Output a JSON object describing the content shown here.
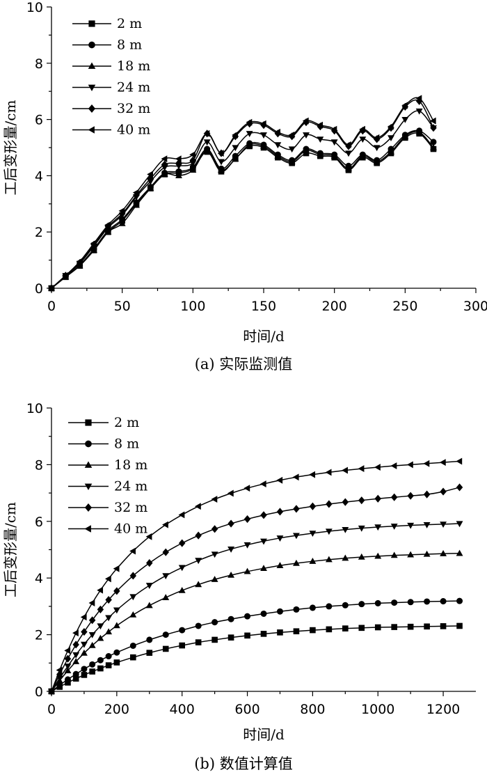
{
  "chart_data": [
    {
      "type": "line",
      "caption": "(a) 实际监测值",
      "xlabel": "时间/d",
      "ylabel": "工后变形量/cm",
      "xlim": [
        0,
        300
      ],
      "ylim": [
        0,
        10
      ],
      "xticks": [
        0,
        50,
        100,
        150,
        200,
        250,
        300
      ],
      "yticks": [
        0,
        2,
        4,
        6,
        8,
        10
      ],
      "legend_position": "top-left",
      "x": [
        0,
        10,
        20,
        30,
        40,
        50,
        60,
        70,
        80,
        90,
        100,
        110,
        120,
        130,
        140,
        150,
        160,
        170,
        180,
        190,
        200,
        210,
        220,
        230,
        240,
        250,
        260,
        270
      ],
      "series": [
        {
          "name": "2 m",
          "marker": "square",
          "values": [
            0,
            0.4,
            0.8,
            1.35,
            2.0,
            2.4,
            3.0,
            3.55,
            4.05,
            4.1,
            4.25,
            4.85,
            4.15,
            4.6,
            5.05,
            5.0,
            4.65,
            4.45,
            4.8,
            4.7,
            4.65,
            4.2,
            4.65,
            4.45,
            4.8,
            5.35,
            5.5,
            4.95
          ]
        },
        {
          "name": "8 m",
          "marker": "circle",
          "values": [
            0,
            0.42,
            0.82,
            1.4,
            2.05,
            2.45,
            3.05,
            3.6,
            4.1,
            4.15,
            4.3,
            4.95,
            4.25,
            4.7,
            5.15,
            5.1,
            4.75,
            4.55,
            4.95,
            4.8,
            4.75,
            4.35,
            4.75,
            4.55,
            4.95,
            5.45,
            5.6,
            5.2
          ]
        },
        {
          "name": "18 m",
          "marker": "triangle-up",
          "values": [
            0,
            0.4,
            0.8,
            1.35,
            2.0,
            2.3,
            2.95,
            3.55,
            4.05,
            4.0,
            4.2,
            4.9,
            4.2,
            4.6,
            5.1,
            5.05,
            4.7,
            4.5,
            4.9,
            4.75,
            4.7,
            4.25,
            4.7,
            4.5,
            4.85,
            5.4,
            5.55,
            5.0
          ]
        },
        {
          "name": "24 m",
          "marker": "triangle-down",
          "values": [
            0,
            0.45,
            0.88,
            1.5,
            2.15,
            2.6,
            3.25,
            3.8,
            4.3,
            4.35,
            4.45,
            5.2,
            4.5,
            5.0,
            5.5,
            5.45,
            5.1,
            4.95,
            5.45,
            5.3,
            5.2,
            4.8,
            5.3,
            5.0,
            5.35,
            6.0,
            6.3,
            5.7
          ]
        },
        {
          "name": "32 m",
          "marker": "diamond",
          "values": [
            0,
            0.45,
            0.9,
            1.55,
            2.2,
            2.65,
            3.3,
            3.9,
            4.4,
            4.45,
            4.55,
            5.5,
            4.8,
            5.4,
            5.85,
            5.8,
            5.5,
            5.4,
            5.9,
            5.75,
            5.6,
            5.05,
            5.6,
            5.3,
            5.7,
            6.45,
            6.65,
            5.7
          ]
        },
        {
          "name": "40 m",
          "marker": "triangle-left",
          "values": [
            0,
            0.45,
            0.95,
            1.6,
            2.25,
            2.75,
            3.4,
            4.05,
            4.6,
            4.6,
            4.75,
            5.5,
            4.8,
            5.45,
            5.9,
            5.85,
            5.55,
            5.45,
            5.95,
            5.8,
            5.65,
            5.1,
            5.65,
            5.35,
            5.75,
            6.5,
            6.75,
            5.95
          ]
        }
      ]
    },
    {
      "type": "line",
      "caption": "(b) 数值计算值",
      "xlabel": "时间/d",
      "ylabel": "工后变形量/cm",
      "xlim": [
        0,
        1300
      ],
      "ylim": [
        0,
        10
      ],
      "xticks": [
        0,
        200,
        400,
        600,
        800,
        1000,
        1200
      ],
      "yticks": [
        0,
        2,
        4,
        6,
        8,
        10
      ],
      "legend_position": "top-left",
      "x": [
        0,
        25,
        50,
        75,
        100,
        125,
        150,
        175,
        200,
        250,
        300,
        350,
        400,
        450,
        500,
        550,
        600,
        650,
        700,
        750,
        800,
        850,
        900,
        950,
        1000,
        1050,
        1100,
        1150,
        1200,
        1250
      ],
      "series": [
        {
          "name": "2 m",
          "marker": "square",
          "values": [
            0,
            0.16,
            0.31,
            0.45,
            0.58,
            0.7,
            0.81,
            0.92,
            1.02,
            1.2,
            1.36,
            1.5,
            1.62,
            1.73,
            1.82,
            1.9,
            1.97,
            2.03,
            2.08,
            2.12,
            2.16,
            2.19,
            2.22,
            2.24,
            2.26,
            2.27,
            2.28,
            2.29,
            2.3,
            2.31
          ]
        },
        {
          "name": "8 m",
          "marker": "circle",
          "values": [
            0,
            0.22,
            0.42,
            0.61,
            0.79,
            0.95,
            1.1,
            1.24,
            1.37,
            1.61,
            1.82,
            2.0,
            2.16,
            2.31,
            2.44,
            2.55,
            2.65,
            2.74,
            2.82,
            2.89,
            2.95,
            3.0,
            3.04,
            3.08,
            3.11,
            3.13,
            3.15,
            3.17,
            3.18,
            3.19
          ]
        },
        {
          "name": "18 m",
          "marker": "triangle-up",
          "values": [
            0,
            0.38,
            0.73,
            1.05,
            1.35,
            1.62,
            1.87,
            2.1,
            2.32,
            2.7,
            3.03,
            3.31,
            3.56,
            3.77,
            3.95,
            4.1,
            4.23,
            4.34,
            4.44,
            4.52,
            4.59,
            4.65,
            4.7,
            4.74,
            4.77,
            4.8,
            4.82,
            4.84,
            4.86,
            4.87
          ]
        },
        {
          "name": "24 m",
          "marker": "triangle-down",
          "values": [
            0,
            0.46,
            0.89,
            1.29,
            1.66,
            2.0,
            2.31,
            2.6,
            2.87,
            3.34,
            3.74,
            4.08,
            4.37,
            4.62,
            4.84,
            5.02,
            5.17,
            5.3,
            5.41,
            5.5,
            5.58,
            5.65,
            5.71,
            5.76,
            5.8,
            5.83,
            5.86,
            5.88,
            5.9,
            5.92
          ]
        },
        {
          "name": "32 m",
          "marker": "diamond",
          "values": [
            0,
            0.6,
            1.15,
            1.65,
            2.1,
            2.51,
            2.89,
            3.23,
            3.54,
            4.08,
            4.53,
            4.91,
            5.23,
            5.5,
            5.73,
            5.92,
            6.08,
            6.22,
            6.34,
            6.44,
            6.53,
            6.61,
            6.68,
            6.74,
            6.8,
            6.85,
            6.9,
            6.95,
            7.05,
            7.2
          ]
        },
        {
          "name": "40 m",
          "marker": "triangle-left",
          "values": [
            0,
            0.75,
            1.44,
            2.06,
            2.62,
            3.12,
            3.57,
            3.97,
            4.33,
            4.95,
            5.46,
            5.88,
            6.23,
            6.53,
            6.78,
            6.99,
            7.17,
            7.32,
            7.45,
            7.56,
            7.65,
            7.73,
            7.8,
            7.86,
            7.91,
            7.96,
            8.0,
            8.04,
            8.08,
            8.12
          ]
        }
      ]
    }
  ]
}
